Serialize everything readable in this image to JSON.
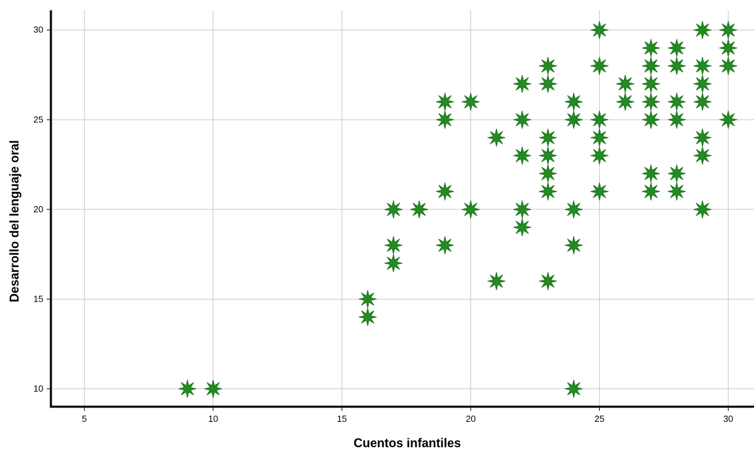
{
  "chart_data": {
    "type": "scatter",
    "title": "",
    "xlabel": "Cuentos infantiles",
    "ylabel": "Desarrollo del lenguaje oral",
    "xlim": [
      3.7,
      31
    ],
    "ylim": [
      9,
      31.1
    ],
    "xticks": [
      5,
      10,
      15,
      20,
      25,
      30
    ],
    "yticks": [
      10,
      15,
      20,
      25,
      30
    ],
    "grid": true,
    "marker": "star",
    "colors": {
      "marker_fill": "#228B22",
      "marker_stroke": "#1a6e1a",
      "grid": "#c8c8c8",
      "axis": "#000000"
    },
    "points": [
      [
        9,
        10
      ],
      [
        10,
        10
      ],
      [
        24,
        10
      ],
      [
        16,
        14
      ],
      [
        16,
        15
      ],
      [
        17,
        17
      ],
      [
        17,
        18
      ],
      [
        19,
        18
      ],
      [
        24,
        18
      ],
      [
        21,
        16
      ],
      [
        23,
        16
      ],
      [
        17,
        20
      ],
      [
        18,
        20
      ],
      [
        20,
        20
      ],
      [
        22,
        20
      ],
      [
        24,
        20
      ],
      [
        29,
        20
      ],
      [
        22,
        19
      ],
      [
        19,
        21
      ],
      [
        23,
        21
      ],
      [
        25,
        21
      ],
      [
        27,
        21
      ],
      [
        28,
        21
      ],
      [
        23,
        22
      ],
      [
        27,
        22
      ],
      [
        28,
        22
      ],
      [
        22,
        23
      ],
      [
        23,
        23
      ],
      [
        25,
        23
      ],
      [
        29,
        23
      ],
      [
        21,
        24
      ],
      [
        23,
        24
      ],
      [
        25,
        24
      ],
      [
        29,
        24
      ],
      [
        19,
        25
      ],
      [
        22,
        25
      ],
      [
        24,
        25
      ],
      [
        25,
        25
      ],
      [
        27,
        25
      ],
      [
        28,
        25
      ],
      [
        30,
        25
      ],
      [
        19,
        26
      ],
      [
        20,
        26
      ],
      [
        24,
        26
      ],
      [
        26,
        26
      ],
      [
        27,
        26
      ],
      [
        28,
        26
      ],
      [
        29,
        26
      ],
      [
        22,
        27
      ],
      [
        23,
        27
      ],
      [
        26,
        27
      ],
      [
        27,
        27
      ],
      [
        29,
        27
      ],
      [
        23,
        28
      ],
      [
        25,
        28
      ],
      [
        27,
        28
      ],
      [
        28,
        28
      ],
      [
        29,
        28
      ],
      [
        30,
        28
      ],
      [
        27,
        29
      ],
      [
        28,
        29
      ],
      [
        30,
        29
      ],
      [
        25,
        30
      ],
      [
        29,
        30
      ],
      [
        30,
        30
      ]
    ]
  }
}
